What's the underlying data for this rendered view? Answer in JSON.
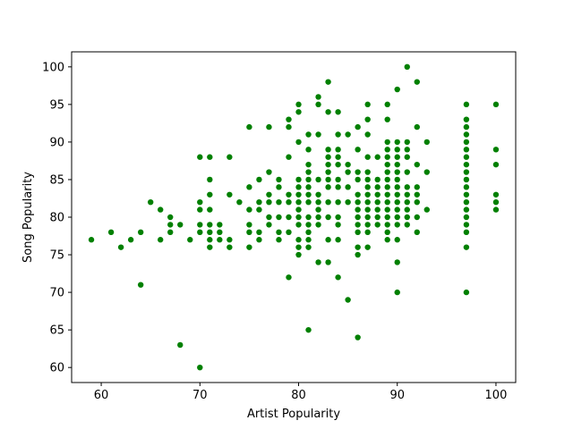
{
  "chart_data": {
    "type": "scatter",
    "title": "",
    "xlabel": "Artist Popularity",
    "ylabel": "Song Popularity",
    "xlim": [
      57,
      102
    ],
    "ylim": [
      58,
      102
    ],
    "x_ticks": [
      60,
      70,
      80,
      90,
      100
    ],
    "y_ticks": [
      60,
      65,
      70,
      75,
      80,
      85,
      90,
      95,
      100
    ],
    "grid": false,
    "colors": {
      "marker": "#008000",
      "axes": "#000000",
      "background": "#ffffff"
    },
    "points": [
      [
        59,
        77
      ],
      [
        61,
        78
      ],
      [
        62,
        76
      ],
      [
        63,
        77
      ],
      [
        64,
        78
      ],
      [
        64,
        71
      ],
      [
        65,
        82
      ],
      [
        66,
        81
      ],
      [
        66,
        77
      ],
      [
        67,
        80
      ],
      [
        67,
        79
      ],
      [
        67,
        78
      ],
      [
        68,
        79
      ],
      [
        68,
        63
      ],
      [
        69,
        77
      ],
      [
        70,
        88
      ],
      [
        70,
        82
      ],
      [
        70,
        81
      ],
      [
        70,
        79
      ],
      [
        70,
        78
      ],
      [
        70,
        60
      ],
      [
        71,
        88
      ],
      [
        71,
        85
      ],
      [
        71,
        83
      ],
      [
        71,
        81
      ],
      [
        71,
        79
      ],
      [
        71,
        78
      ],
      [
        71,
        77
      ],
      [
        71,
        76
      ],
      [
        72,
        79
      ],
      [
        72,
        78
      ],
      [
        72,
        77
      ],
      [
        73,
        88
      ],
      [
        73,
        83
      ],
      [
        73,
        77
      ],
      [
        73,
        76
      ],
      [
        74,
        82
      ],
      [
        75,
        92
      ],
      [
        75,
        84
      ],
      [
        75,
        81
      ],
      [
        75,
        79
      ],
      [
        75,
        78
      ],
      [
        75,
        76
      ],
      [
        76,
        85
      ],
      [
        76,
        82
      ],
      [
        76,
        81
      ],
      [
        76,
        78
      ],
      [
        76,
        77
      ],
      [
        77,
        92
      ],
      [
        77,
        86
      ],
      [
        77,
        83
      ],
      [
        77,
        82
      ],
      [
        77,
        80
      ],
      [
        77,
        79
      ],
      [
        78,
        85
      ],
      [
        78,
        84
      ],
      [
        78,
        82
      ],
      [
        78,
        80
      ],
      [
        78,
        78
      ],
      [
        78,
        77
      ],
      [
        79,
        93
      ],
      [
        79,
        92
      ],
      [
        79,
        88
      ],
      [
        79,
        83
      ],
      [
        79,
        82
      ],
      [
        79,
        80
      ],
      [
        79,
        78
      ],
      [
        79,
        72
      ],
      [
        80,
        95
      ],
      [
        80,
        94
      ],
      [
        80,
        90
      ],
      [
        80,
        85
      ],
      [
        80,
        84
      ],
      [
        80,
        83
      ],
      [
        80,
        82
      ],
      [
        80,
        81
      ],
      [
        80,
        80
      ],
      [
        80,
        79
      ],
      [
        80,
        77
      ],
      [
        80,
        76
      ],
      [
        80,
        75
      ],
      [
        81,
        91
      ],
      [
        81,
        89
      ],
      [
        81,
        87
      ],
      [
        81,
        86
      ],
      [
        81,
        85
      ],
      [
        81,
        84
      ],
      [
        81,
        83
      ],
      [
        81,
        82
      ],
      [
        81,
        80
      ],
      [
        81,
        79
      ],
      [
        81,
        78
      ],
      [
        81,
        77
      ],
      [
        81,
        76
      ],
      [
        81,
        65
      ],
      [
        82,
        96
      ],
      [
        82,
        95
      ],
      [
        82,
        91
      ],
      [
        82,
        85
      ],
      [
        82,
        83
      ],
      [
        82,
        82
      ],
      [
        82,
        81
      ],
      [
        82,
        80
      ],
      [
        82,
        79
      ],
      [
        82,
        74
      ],
      [
        83,
        98
      ],
      [
        83,
        94
      ],
      [
        83,
        89
      ],
      [
        83,
        88
      ],
      [
        83,
        87
      ],
      [
        83,
        86
      ],
      [
        83,
        85
      ],
      [
        83,
        84
      ],
      [
        83,
        82
      ],
      [
        83,
        80
      ],
      [
        83,
        77
      ],
      [
        83,
        74
      ],
      [
        84,
        94
      ],
      [
        84,
        91
      ],
      [
        84,
        89
      ],
      [
        84,
        88
      ],
      [
        84,
        87
      ],
      [
        84,
        85
      ],
      [
        84,
        84
      ],
      [
        84,
        82
      ],
      [
        84,
        80
      ],
      [
        84,
        79
      ],
      [
        84,
        77
      ],
      [
        84,
        72
      ],
      [
        85,
        91
      ],
      [
        85,
        87
      ],
      [
        85,
        86
      ],
      [
        85,
        84
      ],
      [
        85,
        82
      ],
      [
        85,
        69
      ],
      [
        86,
        92
      ],
      [
        86,
        89
      ],
      [
        86,
        86
      ],
      [
        86,
        85
      ],
      [
        86,
        83
      ],
      [
        86,
        82
      ],
      [
        86,
        81
      ],
      [
        86,
        80
      ],
      [
        86,
        79
      ],
      [
        86,
        78
      ],
      [
        86,
        76
      ],
      [
        86,
        75
      ],
      [
        86,
        64
      ],
      [
        87,
        95
      ],
      [
        87,
        93
      ],
      [
        87,
        91
      ],
      [
        87,
        88
      ],
      [
        87,
        86
      ],
      [
        87,
        85
      ],
      [
        87,
        84
      ],
      [
        87,
        83
      ],
      [
        87,
        82
      ],
      [
        87,
        81
      ],
      [
        87,
        80
      ],
      [
        87,
        79
      ],
      [
        87,
        78
      ],
      [
        87,
        76
      ],
      [
        88,
        88
      ],
      [
        88,
        85
      ],
      [
        88,
        84
      ],
      [
        88,
        83
      ],
      [
        88,
        82
      ],
      [
        88,
        81
      ],
      [
        88,
        80
      ],
      [
        88,
        79
      ],
      [
        89,
        95
      ],
      [
        89,
        93
      ],
      [
        89,
        90
      ],
      [
        89,
        89
      ],
      [
        89,
        88
      ],
      [
        89,
        87
      ],
      [
        89,
        86
      ],
      [
        89,
        85
      ],
      [
        89,
        84
      ],
      [
        89,
        83
      ],
      [
        89,
        82
      ],
      [
        89,
        81
      ],
      [
        89,
        80
      ],
      [
        89,
        79
      ],
      [
        89,
        78
      ],
      [
        89,
        77
      ],
      [
        90,
        97
      ],
      [
        90,
        90
      ],
      [
        90,
        89
      ],
      [
        90,
        88
      ],
      [
        90,
        87
      ],
      [
        90,
        86
      ],
      [
        90,
        85
      ],
      [
        90,
        84
      ],
      [
        90,
        83
      ],
      [
        90,
        82
      ],
      [
        90,
        81
      ],
      [
        90,
        80
      ],
      [
        90,
        79
      ],
      [
        90,
        77
      ],
      [
        90,
        74
      ],
      [
        90,
        70
      ],
      [
        91,
        100
      ],
      [
        91,
        90
      ],
      [
        91,
        89
      ],
      [
        91,
        88
      ],
      [
        91,
        86
      ],
      [
        91,
        84
      ],
      [
        91,
        83
      ],
      [
        91,
        82
      ],
      [
        91,
        81
      ],
      [
        91,
        80
      ],
      [
        91,
        79
      ],
      [
        92,
        98
      ],
      [
        92,
        92
      ],
      [
        92,
        87
      ],
      [
        92,
        84
      ],
      [
        92,
        83
      ],
      [
        92,
        82
      ],
      [
        92,
        80
      ],
      [
        92,
        78
      ],
      [
        93,
        90
      ],
      [
        93,
        86
      ],
      [
        93,
        81
      ],
      [
        97,
        95
      ],
      [
        97,
        93
      ],
      [
        97,
        92
      ],
      [
        97,
        91
      ],
      [
        97,
        90
      ],
      [
        97,
        89
      ],
      [
        97,
        88
      ],
      [
        97,
        87
      ],
      [
        97,
        86
      ],
      [
        97,
        85
      ],
      [
        97,
        84
      ],
      [
        97,
        83
      ],
      [
        97,
        82
      ],
      [
        97,
        81
      ],
      [
        97,
        80
      ],
      [
        97,
        79
      ],
      [
        97,
        78
      ],
      [
        97,
        76
      ],
      [
        97,
        70
      ],
      [
        100,
        95
      ],
      [
        100,
        89
      ],
      [
        100,
        87
      ],
      [
        100,
        83
      ],
      [
        100,
        82
      ],
      [
        100,
        81
      ]
    ]
  }
}
